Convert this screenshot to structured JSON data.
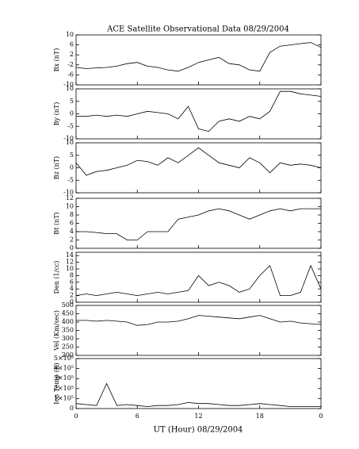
{
  "chart_data": [
    {
      "type": "line",
      "title": "ACE Satellite Observational Data   08/29/2004",
      "ylabel": "Bx (nT)",
      "color": "#000000",
      "x": [
        0,
        1,
        2,
        3,
        4,
        5,
        6,
        7,
        8,
        9,
        10,
        11,
        12,
        13,
        14,
        15,
        16,
        17,
        18,
        19,
        20,
        21,
        22,
        23,
        24
      ],
      "values": [
        -3,
        -3.5,
        -3.2,
        -3,
        -2.5,
        -1.5,
        -1,
        -2.5,
        -3,
        -4,
        -4.5,
        -3,
        -1,
        0,
        1,
        -1.5,
        -2,
        -4,
        -4.5,
        3,
        5.5,
        6,
        6.5,
        7,
        5
      ],
      "ylim": [
        -10,
        10
      ],
      "yticks": [
        -10,
        -6,
        -2,
        2,
        6,
        10
      ]
    },
    {
      "type": "line",
      "ylabel": "By (nT)",
      "color": "#000000",
      "x": [
        0,
        1,
        2,
        3,
        4,
        5,
        6,
        7,
        8,
        9,
        10,
        11,
        12,
        13,
        14,
        15,
        16,
        17,
        18,
        19,
        20,
        21,
        22,
        23,
        24
      ],
      "values": [
        -1,
        -1,
        -0.5,
        -1,
        -0.5,
        -1,
        0,
        1,
        0.5,
        0,
        -2,
        3,
        -6,
        -7,
        -3,
        -2,
        -3,
        -1,
        -2,
        1,
        9,
        9,
        8,
        7.5,
        7
      ],
      "ylim": [
        -10,
        10
      ],
      "yticks": [
        -10,
        -5,
        0,
        5,
        10
      ]
    },
    {
      "type": "line",
      "ylabel": "Bz (nT)",
      "color": "#000000",
      "x": [
        0,
        1,
        2,
        3,
        4,
        5,
        6,
        7,
        8,
        9,
        10,
        11,
        12,
        13,
        14,
        15,
        16,
        17,
        18,
        19,
        20,
        21,
        22,
        23,
        24
      ],
      "values": [
        2,
        -3,
        -1.5,
        -1,
        0,
        1,
        3,
        2.5,
        1,
        4,
        2,
        5,
        8,
        5,
        2,
        1,
        0,
        4,
        2,
        -2,
        2,
        1,
        1.5,
        1,
        0
      ],
      "ylim": [
        -10,
        10
      ],
      "yticks": [
        -10,
        -5,
        0,
        5,
        10
      ]
    },
    {
      "type": "line",
      "ylabel": "Bt (nT)",
      "color": "#000000",
      "x": [
        0,
        1,
        2,
        3,
        4,
        5,
        6,
        7,
        8,
        9,
        10,
        11,
        12,
        13,
        14,
        15,
        16,
        17,
        18,
        19,
        20,
        21,
        22,
        23,
        24
      ],
      "values": [
        4,
        4,
        3.8,
        3.5,
        3.5,
        2,
        2,
        4,
        4,
        4,
        7,
        7.5,
        8,
        9,
        9.5,
        9,
        8,
        7,
        8,
        9,
        9.5,
        9,
        9.5,
        9.5,
        9.5
      ],
      "ylim": [
        0,
        12
      ],
      "yticks": [
        0,
        2,
        4,
        6,
        8,
        10,
        12
      ]
    },
    {
      "type": "line",
      "ylabel": "Den (1/cc)",
      "color": "#000000",
      "x": [
        0,
        1,
        2,
        3,
        4,
        5,
        6,
        7,
        8,
        9,
        10,
        11,
        12,
        13,
        14,
        15,
        16,
        17,
        18,
        19,
        20,
        21,
        22,
        23,
        24
      ],
      "values": [
        2,
        2.5,
        2,
        2.5,
        3,
        2.5,
        2,
        2.5,
        3,
        2.5,
        3,
        3.5,
        8,
        5,
        6,
        5,
        3,
        4,
        8,
        11,
        2,
        2,
        3,
        11,
        4
      ],
      "ylim": [
        0,
        15
      ],
      "yticks": [
        0,
        2,
        4,
        6,
        8,
        10,
        12,
        14
      ]
    },
    {
      "type": "line",
      "ylabel": "Vel (Km/sec)",
      "color": "#000000",
      "x": [
        0,
        1,
        2,
        3,
        4,
        5,
        6,
        7,
        8,
        9,
        10,
        11,
        12,
        13,
        14,
        15,
        16,
        17,
        18,
        19,
        20,
        21,
        22,
        23,
        24
      ],
      "values": [
        410,
        410,
        405,
        410,
        405,
        400,
        380,
        385,
        400,
        400,
        405,
        420,
        440,
        435,
        430,
        425,
        420,
        430,
        440,
        420,
        400,
        405,
        395,
        390,
        385
      ],
      "ylim": [
        200,
        500
      ],
      "yticks": [
        200,
        250,
        300,
        350,
        400,
        450,
        500
      ]
    },
    {
      "type": "line",
      "ylabel": "Ion Temp (K)",
      "xlabel": "UT (Hour)   08/29/2004",
      "color": "#000000",
      "x": [
        0,
        1,
        2,
        3,
        4,
        5,
        6,
        7,
        8,
        9,
        10,
        11,
        12,
        13,
        14,
        15,
        16,
        17,
        18,
        19,
        20,
        21,
        22,
        23,
        24
      ],
      "values": [
        50000,
        40000,
        30000,
        250000,
        30000,
        40000,
        30000,
        20000,
        30000,
        30000,
        40000,
        60000,
        50000,
        50000,
        40000,
        30000,
        30000,
        40000,
        50000,
        40000,
        30000,
        20000,
        20000,
        20000,
        20000
      ],
      "ylim": [
        0,
        500000
      ],
      "yticks": [
        0,
        {
          "value": 100000,
          "label": "1×10⁵"
        },
        {
          "value": 200000,
          "label": "2×10⁵"
        },
        {
          "value": 300000,
          "label": "3×10⁵"
        },
        {
          "value": 400000,
          "label": "4×10⁵"
        },
        {
          "value": 500000,
          "label": "5×10⁵"
        }
      ],
      "xlim": [
        0,
        24
      ],
      "xticks": [
        0,
        6,
        12,
        18,
        {
          "value": 24,
          "label": "0"
        }
      ]
    }
  ]
}
